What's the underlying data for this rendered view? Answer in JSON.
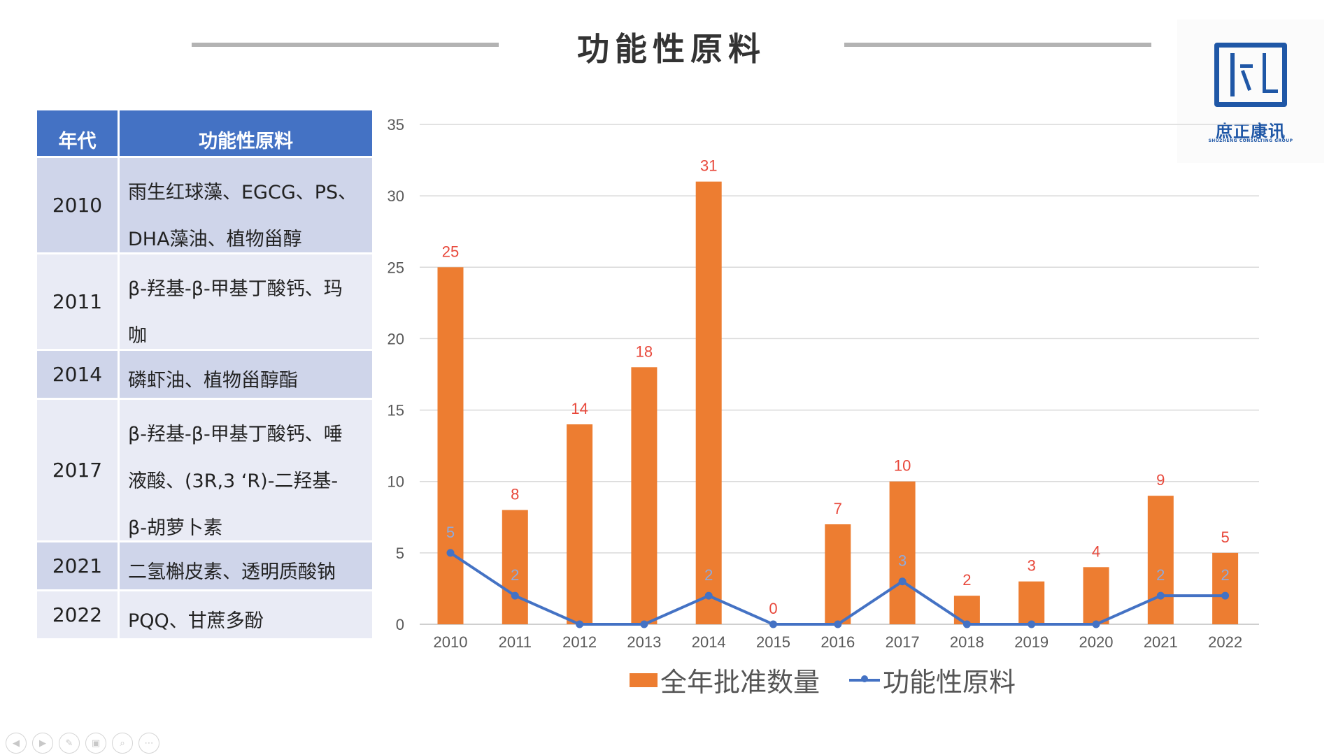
{
  "page": {
    "title": "功能性原料"
  },
  "logo": {
    "name": "庶正康讯",
    "subtitle": "SHUZHENG CONSULTING GROUP"
  },
  "table": {
    "headers": {
      "year": "年代",
      "material": "功能性原料"
    },
    "rows": [
      {
        "year": "2010",
        "lines": [
          "雨生红球藻、EGCG、PS、",
          "DHA藻油、植物甾醇"
        ]
      },
      {
        "year": "2011",
        "lines": [
          "β-羟基-β-甲基丁酸钙、玛",
          "咖"
        ]
      },
      {
        "year": "2014",
        "lines": [
          "磷虾油、植物甾醇酯"
        ]
      },
      {
        "year": "2017",
        "lines": [
          "β-羟基-β-甲基丁酸钙、唾",
          "液酸、(3R,3 ‘R)-二羟基-",
          "β-胡萝卜素"
        ]
      },
      {
        "year": "2021",
        "lines": [
          "二氢槲皮素、透明质酸钠"
        ]
      },
      {
        "year": "2022",
        "lines": [
          "PQQ、甘蔗多酚"
        ]
      }
    ]
  },
  "chart_data": {
    "type": "bar",
    "categories": [
      "2010",
      "2011",
      "2012",
      "2013",
      "2014",
      "2015",
      "2016",
      "2017",
      "2018",
      "2019",
      "2020",
      "2021",
      "2022"
    ],
    "series": [
      {
        "name": "全年批准数量",
        "type": "bar",
        "color": "#ed7d31",
        "values": [
          25,
          8,
          14,
          18,
          31,
          0,
          7,
          10,
          2,
          3,
          4,
          9,
          5
        ]
      },
      {
        "name": "功能性原料",
        "type": "line",
        "color": "#4472c4",
        "values": [
          5,
          2,
          0,
          0,
          2,
          0,
          0,
          3,
          0,
          0,
          0,
          2,
          2
        ],
        "labeled_points": [
          0,
          1,
          4,
          7,
          11,
          12
        ]
      }
    ],
    "ylim": [
      0,
      35
    ],
    "yticks": [
      0,
      5,
      10,
      15,
      20,
      25,
      30,
      35
    ],
    "grid": true,
    "legend": "bottom",
    "label_color": "#e8483b"
  },
  "nav": {
    "icons": [
      "prev-icon",
      "next-icon",
      "pen-icon",
      "slides-icon",
      "zoom-icon",
      "more-icon"
    ]
  }
}
